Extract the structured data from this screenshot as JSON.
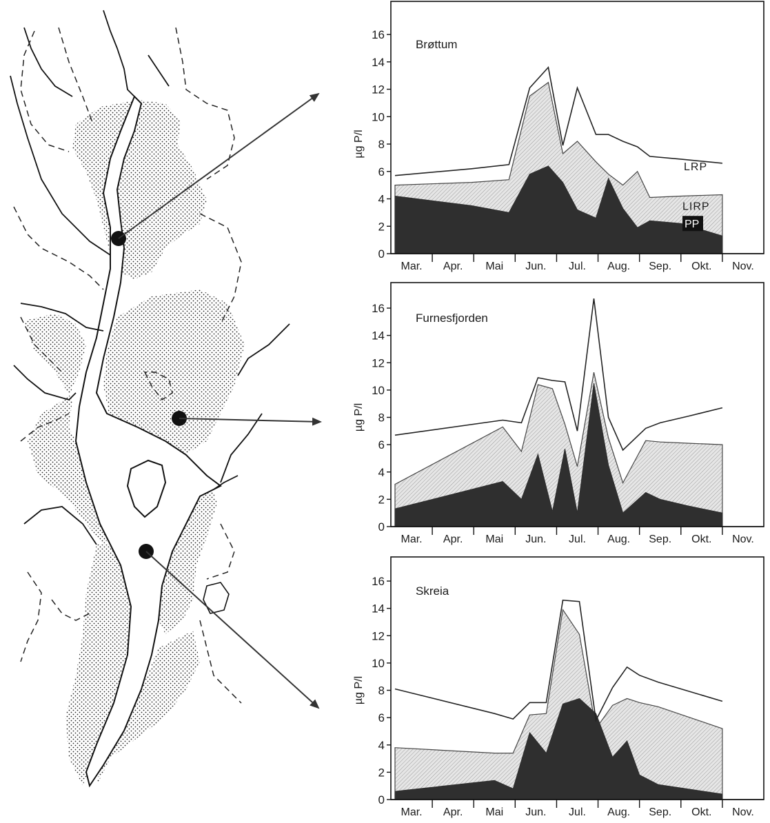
{
  "months": [
    "Mar.",
    "Apr.",
    "Mai",
    "Jun.",
    "Jul.",
    "Aug.",
    "Sep.",
    "Okt.",
    "Nov."
  ],
  "colors": {
    "pp": "#2f2f2f",
    "lirp": "#d2d2d2",
    "line": "#222222"
  },
  "chart_data": [
    {
      "type": "area",
      "title": "Brøttum",
      "ylabel": "µg P/l",
      "ylim": [
        0,
        16
      ],
      "yticks": [
        "0",
        "2",
        "4",
        "6",
        "8",
        "10",
        "12",
        "14",
        "16"
      ],
      "labels": {
        "lrp": "LRP",
        "lirp": "LIRP",
        "pp": "PP"
      },
      "x": [
        0.1,
        1.95,
        2.85,
        3.35,
        3.8,
        4.15,
        4.5,
        4.95,
        5.25,
        5.6,
        5.95,
        6.25,
        7.0,
        8.0
      ],
      "series": [
        {
          "name": "PP",
          "values": [
            4.2,
            3.5,
            3.0,
            5.8,
            6.4,
            5.2,
            3.2,
            2.6,
            5.5,
            3.3,
            1.9,
            2.4,
            2.2,
            1.3
          ]
        },
        {
          "name": "LIRP",
          "values": [
            5.0,
            5.2,
            5.4,
            11.5,
            12.5,
            7.3,
            8.2,
            6.7,
            5.8,
            5.0,
            6.0,
            4.1,
            4.2,
            4.3
          ]
        },
        {
          "name": "LRP",
          "values": [
            5.7,
            6.2,
            6.5,
            12.1,
            13.6,
            7.9,
            12.1,
            8.7,
            8.7,
            8.2,
            7.8,
            7.1,
            6.9,
            6.6
          ]
        }
      ]
    },
    {
      "type": "area",
      "title": "Furnesfjorden",
      "ylabel": "µg P/l",
      "ylim": [
        0,
        16
      ],
      "yticks": [
        "0",
        "2",
        "4",
        "6",
        "8",
        "10",
        "12",
        "14",
        "16"
      ],
      "x": [
        0.1,
        2.7,
        3.15,
        3.55,
        3.9,
        4.2,
        4.5,
        4.9,
        5.25,
        5.6,
        6.15,
        6.5,
        7.2,
        8.0
      ],
      "series": [
        {
          "name": "PP",
          "values": [
            1.3,
            3.3,
            2.0,
            5.3,
            1.1,
            5.7,
            1.0,
            10.5,
            4.5,
            1.0,
            2.5,
            2.0,
            1.5,
            1.0
          ]
        },
        {
          "name": "LIRP",
          "values": [
            3.1,
            7.3,
            5.5,
            10.4,
            10.1,
            7.5,
            4.4,
            11.3,
            6.5,
            3.2,
            6.3,
            6.2,
            6.1,
            6.0
          ]
        },
        {
          "name": "LRP",
          "values": [
            6.7,
            7.8,
            7.6,
            10.9,
            10.7,
            10.6,
            7.0,
            16.7,
            8.0,
            5.6,
            7.2,
            7.6,
            8.1,
            8.7
          ]
        }
      ]
    },
    {
      "type": "area",
      "title": "Skreia",
      "ylabel": "µg P/l",
      "ylim": [
        0,
        16
      ],
      "yticks": [
        "0",
        "2",
        "4",
        "6",
        "8",
        "10",
        "12",
        "14",
        "16"
      ],
      "x": [
        0.1,
        2.5,
        2.95,
        3.35,
        3.75,
        4.15,
        4.55,
        4.95,
        5.35,
        5.7,
        6.0,
        6.45,
        8.0
      ],
      "series": [
        {
          "name": "PP",
          "values": [
            0.6,
            1.4,
            0.8,
            4.9,
            3.4,
            7.0,
            7.4,
            6.3,
            3.1,
            4.3,
            1.8,
            1.1,
            0.4
          ]
        },
        {
          "name": "LIRP",
          "values": [
            3.8,
            3.4,
            3.4,
            6.2,
            6.3,
            13.9,
            12.1,
            5.2,
            6.9,
            7.4,
            7.1,
            6.8,
            5.2
          ]
        },
        {
          "name": "LRP",
          "values": [
            8.1,
            6.3,
            5.9,
            7.1,
            7.1,
            14.6,
            14.5,
            5.8,
            8.2,
            9.7,
            9.1,
            8.6,
            7.2
          ]
        }
      ]
    }
  ]
}
